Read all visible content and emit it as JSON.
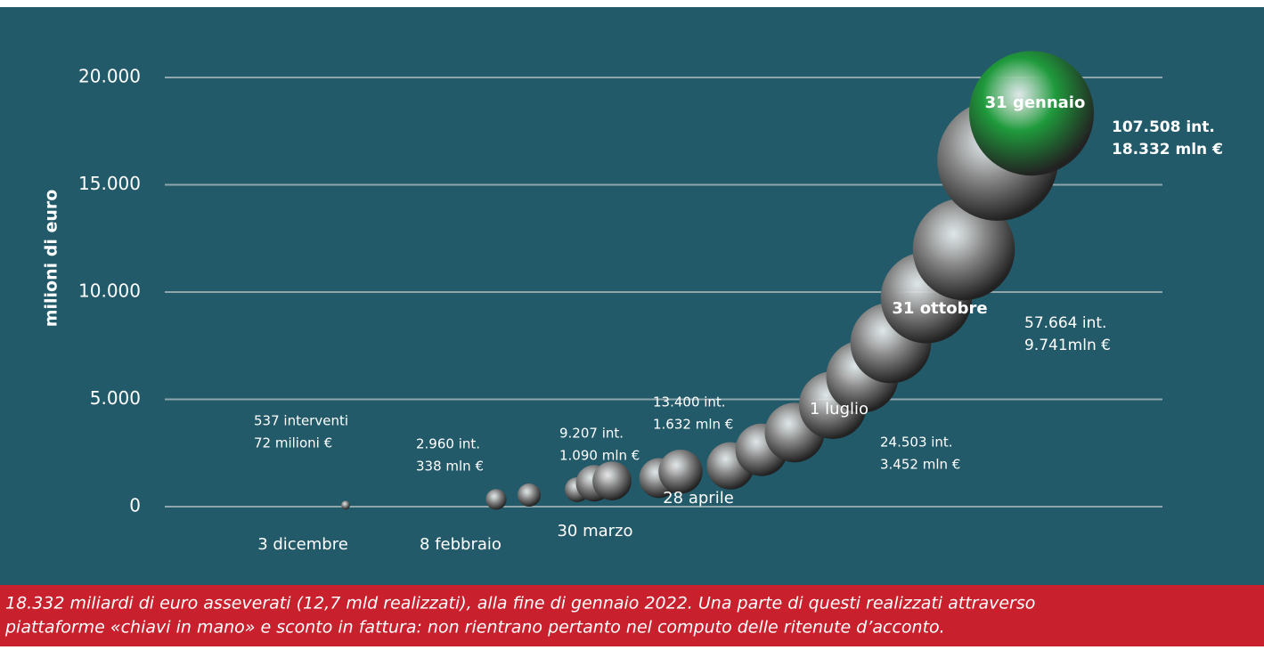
{
  "chart_data": {
    "type": "bubble",
    "y_label": "milioni di euro",
    "categories": [
      "3 dicembre",
      "8 febbraio",
      null,
      null,
      "30 marzo",
      null,
      null,
      "28 aprile",
      null,
      null,
      null,
      "1 luglio",
      null,
      null,
      "31 ottobre",
      null,
      null,
      "31 gennaio"
    ],
    "values": [
      72,
      338,
      540,
      790,
      1090,
      1200,
      1330,
      1632,
      1900,
      2650,
      3452,
      4730,
      6060,
      7630,
      9741,
      12000,
      16140,
      18332
    ],
    "sizes": [
      537,
      2960,
      3700,
      4300,
      9207,
      10500,
      11000,
      13400,
      15500,
      19000,
      24503,
      31700,
      36000,
      45000,
      57664,
      72000,
      101000,
      107508
    ],
    "size_labels": [
      "537 interventi",
      "2.960 int.",
      null,
      null,
      "9.207 int.",
      null,
      null,
      "13.400 int.",
      null,
      null,
      "24.503 int.",
      null,
      null,
      null,
      "57.664 int.",
      null,
      null,
      "107.508 int."
    ],
    "value_labels": [
      "72 milioni €",
      "338 mln €",
      null,
      null,
      "1.090 mln €",
      null,
      null,
      "1.632 mln €",
      null,
      null,
      "3.452 mln €",
      null,
      null,
      null,
      "9.741mln €",
      null,
      null,
      "18.332 mln €"
    ],
    "colors": [
      "#8c8c8c",
      "#8c8c8c",
      "#8c8c8c",
      "#8c8c8c",
      "#8c8c8c",
      "#8c8c8c",
      "#8c8c8c",
      "#8c8c8c",
      "#8c8c8c",
      "#8c8c8c",
      "#8c8c8c",
      "#8c8c8c",
      "#8c8c8c",
      "#8c8c8c",
      "#8c8c8c",
      "#8c8c8c",
      "#8c8c8c",
      "#1f9a3c"
    ],
    "ylim": [
      0,
      20000
    ],
    "yticks": [
      0,
      {
        "value": 5000,
        "label": "5.000"
      },
      {
        "value": 10000,
        "label": "10.000"
      },
      {
        "value": 15000,
        "label": "15.000"
      },
      {
        "value": 20000,
        "label": "20.000"
      }
    ],
    "grid": true
  },
  "footer": {
    "lines": [
      "18.332 miliardi di euro asseverati (12,7 mld realizzati), alla fine di gennaio 2022. Una parte di questi realizzati attraverso",
      "piattaforme «chiavi in mano» e sconto in fattura: non rientrano pertanto nel computo delle ritenute d’acconto."
    ]
  }
}
